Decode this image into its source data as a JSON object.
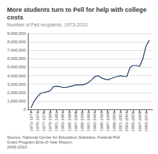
{
  "chart_data": {
    "type": "line",
    "title": "More students turn to Pell for help with college costs",
    "subtitle": "Number of Pell recipients, 1973-2010",
    "source": "Source: National Center for Education Statistics, Federal Pell Grant Program End-of-Year Report,\n2009-2010.",
    "x": [
      1973,
      1974,
      1975,
      1976,
      1977,
      1978,
      1979,
      1980,
      1981,
      1982,
      1983,
      1984,
      1985,
      1986,
      1987,
      1988,
      1989,
      1990,
      1991,
      1992,
      1993,
      1994,
      1995,
      1996,
      1997,
      1998,
      1999,
      2000,
      2001,
      2002,
      2003,
      2004,
      2005,
      2006,
      2007,
      2008,
      2009,
      2010
    ],
    "values": [
      176000,
      1000000,
      1500000,
      1900000,
      2000000,
      2100000,
      2200000,
      2700000,
      2750000,
      2700000,
      2600000,
      2600000,
      2700000,
      2800000,
      2900000,
      2900000,
      2900000,
      3000000,
      3200000,
      3500000,
      3900000,
      4000000,
      3750000,
      3600000,
      3500000,
      3650000,
      3800000,
      3900000,
      4000000,
      3900000,
      3900000,
      5000000,
      5200000,
      5200000,
      5100000,
      6000000,
      7500000,
      8200000
    ],
    "color": "#1a3060",
    "xlim": [
      1972,
      2011
    ],
    "xticks": [
      {
        "value": 1973,
        "label": "1973-1974"
      },
      {
        "value": 1975,
        "label": "1975-1976"
      },
      {
        "value": 1977,
        "label": "1977-1978"
      },
      {
        "value": 1979,
        "label": "1979-1980"
      },
      {
        "value": 1981,
        "label": "1981-1982"
      },
      {
        "value": 1983,
        "label": "1983-1984"
      },
      {
        "value": 1985,
        "label": "1985-1986"
      },
      {
        "value": 1987,
        "label": "1987-1988"
      },
      {
        "value": 1989,
        "label": "1989-1990"
      },
      {
        "value": 1991,
        "label": "1991-1992"
      },
      {
        "value": 1993,
        "label": "1993-1994"
      },
      {
        "value": 1995,
        "label": "1995-1996"
      },
      {
        "value": 1997,
        "label": "1997-1998"
      },
      {
        "value": 1999,
        "label": "1999-2000"
      },
      {
        "value": 2001,
        "label": "2001-2002"
      },
      {
        "value": 2003,
        "label": "2003-2004"
      },
      {
        "value": 2005,
        "label": "2005-2006"
      },
      {
        "value": 2007,
        "label": "2007-2008"
      },
      {
        "value": 2009,
        "label": "2009-2010"
      }
    ],
    "ylim": [
      0,
      9000000
    ],
    "yticks": [
      0,
      {
        "value": 1000000,
        "label": "1,000,000"
      },
      {
        "value": 2000000,
        "label": "2,000,000"
      },
      {
        "value": 3000000,
        "label": "3,000,000"
      },
      {
        "value": 4000000,
        "label": "4,000,000"
      },
      {
        "value": 5000000,
        "label": "5,000,000"
      },
      {
        "value": 6000000,
        "label": "6,000,000"
      },
      {
        "value": 7000000,
        "label": "7,000,000"
      },
      {
        "value": 8000000,
        "label": "8,000,000"
      },
      {
        "value": 9000000,
        "label": "9,000,000"
      }
    ],
    "grid": true
  }
}
